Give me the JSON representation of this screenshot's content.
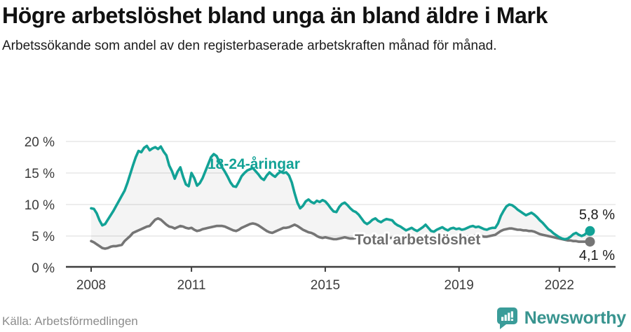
{
  "header": {
    "title": "Högre arbetslöshet bland unga än bland äldre i Mark",
    "subtitle": "Arbetssökande som andel av den registerbaserade arbetskraften månad för månad."
  },
  "footer": {
    "source": "Källa: Arbetsförmedlingen",
    "brand": "Newsworthy"
  },
  "colors": {
    "young_line": "#12a296",
    "total_line": "#757575",
    "total_label": "#6e6e6e",
    "fill_between": "#f4f4f4",
    "gridline": "#e2e2e2",
    "axis": "#3f3f3f",
    "brand_teal": "#3a9c99"
  },
  "chart_data": {
    "type": "line",
    "unit": "%",
    "frequency": "monthly",
    "start": "2008-01",
    "end": "2022-12",
    "grid": "horizontal",
    "ylim": [
      0,
      20
    ],
    "ytick_values": [
      0,
      5,
      10,
      15,
      20
    ],
    "ytick_labels": [
      "0 %",
      "5 %",
      "10 %",
      "15 %",
      "20 %"
    ],
    "xtick_years": [
      2008,
      2011,
      2015,
      2019,
      2022
    ],
    "xtick_labels": [
      "2008",
      "2011",
      "2015",
      "2019",
      "2022"
    ],
    "series": [
      {
        "name": "18-24-åringar",
        "color": "#12a296",
        "end_label": "5,8 %",
        "end_value": 5.8,
        "values": [
          9.4,
          9.3,
          8.6,
          7.5,
          6.7,
          6.9,
          7.6,
          8.3,
          9.0,
          9.8,
          10.6,
          11.4,
          12.2,
          13.4,
          14.8,
          16.2,
          17.5,
          18.5,
          18.3,
          19.0,
          19.3,
          18.6,
          18.9,
          19.1,
          18.8,
          19.2,
          18.4,
          17.8,
          16.2,
          15.3,
          14.1,
          15.2,
          15.9,
          14.4,
          13.2,
          12.9,
          15.0,
          14.2,
          13.0,
          13.4,
          14.2,
          15.3,
          16.4,
          17.5,
          18.0,
          17.7,
          16.8,
          15.9,
          15.2,
          14.4,
          13.5,
          12.9,
          12.8,
          13.6,
          14.5,
          15.0,
          15.4,
          15.6,
          15.8,
          15.3,
          14.8,
          14.2,
          13.9,
          14.6,
          15.1,
          14.7,
          14.4,
          14.9,
          15.2,
          15.0,
          15.1,
          14.6,
          13.5,
          11.8,
          10.3,
          9.4,
          9.8,
          10.5,
          10.8,
          10.4,
          10.2,
          10.6,
          10.4,
          10.7,
          10.5,
          10.0,
          9.4,
          8.9,
          8.8,
          9.6,
          10.1,
          10.3,
          9.9,
          9.4,
          9.0,
          8.8,
          8.4,
          7.8,
          7.2,
          6.9,
          7.2,
          7.6,
          7.8,
          7.4,
          7.2,
          7.5,
          7.7,
          7.6,
          7.5,
          7.0,
          6.7,
          6.5,
          6.2,
          5.9,
          6.1,
          6.3,
          6.0,
          5.8,
          6.1,
          6.4,
          6.8,
          6.3,
          5.8,
          5.7,
          6.0,
          6.2,
          6.4,
          6.1,
          5.9,
          6.2,
          6.3,
          6.1,
          6.2,
          6.0,
          6.1,
          6.3,
          6.5,
          6.6,
          6.4,
          6.5,
          6.3,
          6.1,
          6.0,
          6.2,
          6.3,
          6.3,
          7.0,
          8.2,
          9.0,
          9.7,
          10.0,
          9.9,
          9.6,
          9.2,
          8.9,
          8.6,
          8.3,
          8.5,
          8.7,
          8.4,
          8.0,
          7.5,
          7.1,
          6.6,
          6.1,
          5.8,
          5.4,
          5.1,
          4.8,
          4.6,
          4.5,
          4.6,
          4.9,
          5.3,
          5.5,
          5.2,
          5.0,
          5.2,
          5.6,
          5.8
        ]
      },
      {
        "name": "Total arbetslöshet",
        "color": "#757575",
        "end_label": "4,1 %",
        "end_value": 4.1,
        "values": [
          4.2,
          4.0,
          3.7,
          3.4,
          3.1,
          3.0,
          3.1,
          3.3,
          3.4,
          3.4,
          3.5,
          3.6,
          4.2,
          4.6,
          5.0,
          5.5,
          5.7,
          5.9,
          6.1,
          6.3,
          6.5,
          6.6,
          7.1,
          7.6,
          7.8,
          7.6,
          7.2,
          6.8,
          6.5,
          6.4,
          6.2,
          6.4,
          6.6,
          6.5,
          6.3,
          6.2,
          6.3,
          6.0,
          5.8,
          5.9,
          6.1,
          6.2,
          6.3,
          6.4,
          6.5,
          6.6,
          6.6,
          6.6,
          6.5,
          6.3,
          6.1,
          5.9,
          5.8,
          6.0,
          6.3,
          6.5,
          6.7,
          6.9,
          7.0,
          6.9,
          6.7,
          6.4,
          6.1,
          5.8,
          5.6,
          5.5,
          5.7,
          5.9,
          6.1,
          6.3,
          6.3,
          6.4,
          6.6,
          6.8,
          6.6,
          6.3,
          6.0,
          5.8,
          5.6,
          5.5,
          5.3,
          5.0,
          4.8,
          4.7,
          4.8,
          4.7,
          4.6,
          4.5,
          4.5,
          4.6,
          4.7,
          4.8,
          4.7,
          4.6,
          4.6,
          4.7,
          4.7,
          4.6,
          4.5,
          4.5,
          4.6,
          4.7,
          4.8,
          4.7,
          4.6,
          4.6,
          4.7,
          4.7,
          4.7,
          4.6,
          4.6,
          4.5,
          4.5,
          4.6,
          4.7,
          4.8,
          4.7,
          4.6,
          4.6,
          4.7,
          4.8,
          4.7,
          4.6,
          4.5,
          4.4,
          4.5,
          4.6,
          4.7,
          4.6,
          4.5,
          4.6,
          4.7,
          4.8,
          4.8,
          4.9,
          4.9,
          5.0,
          5.0,
          5.1,
          5.0,
          5.0,
          4.9,
          4.9,
          5.0,
          5.1,
          5.2,
          5.5,
          5.8,
          6.0,
          6.1,
          6.2,
          6.2,
          6.1,
          6.0,
          6.0,
          5.9,
          5.9,
          5.8,
          5.8,
          5.7,
          5.5,
          5.3,
          5.2,
          5.1,
          5.0,
          4.9,
          4.8,
          4.7,
          4.6,
          4.5,
          4.4,
          4.3,
          4.3,
          4.2,
          4.2,
          4.1,
          4.1,
          4.1,
          4.1,
          4.1
        ]
      }
    ]
  }
}
